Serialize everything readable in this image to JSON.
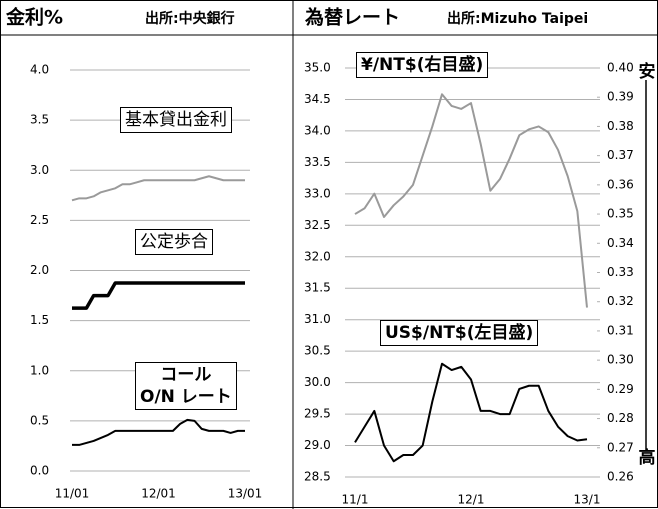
{
  "chart_data": [
    {
      "type": "line",
      "title": "金利%",
      "source": "出所:中央銀行",
      "categories": [
        "11/01",
        null,
        null,
        null,
        null,
        null,
        null,
        null,
        null,
        null,
        null,
        null,
        "12/01",
        null,
        null,
        null,
        null,
        null,
        null,
        null,
        null,
        null,
        null,
        null,
        "13/01"
      ],
      "ylim": [
        0,
        4
      ],
      "yticks": [
        {
          "value": 0,
          "label": "0.0"
        },
        0.5,
        {
          "value": 1,
          "label": "1.0"
        },
        1.5,
        {
          "value": 2,
          "label": "2.0"
        },
        2.5,
        {
          "value": 3,
          "label": "3.0"
        },
        3.5,
        {
          "value": 4,
          "label": "4.0"
        }
      ],
      "grid": true,
      "series": [
        {
          "name": "基本貸出金利",
          "color": "#9a9a9a",
          "width": 2,
          "values": [
            2.7,
            2.72,
            2.72,
            2.74,
            2.78,
            2.8,
            2.82,
            2.86,
            2.86,
            2.88,
            2.9,
            2.9,
            2.9,
            2.9,
            2.9,
            2.9,
            2.9,
            2.9,
            2.92,
            2.94,
            2.92,
            2.9,
            2.9,
            2.9,
            2.9
          ]
        },
        {
          "name": "公定歩合",
          "color": "#000000",
          "width": 3.5,
          "values": [
            1.625,
            1.625,
            1.625,
            1.75,
            1.75,
            1.75,
            1.875,
            1.875,
            1.875,
            1.875,
            1.875,
            1.875,
            1.875,
            1.875,
            1.875,
            1.875,
            1.875,
            1.875,
            1.875,
            1.875,
            1.875,
            1.875,
            1.875,
            1.875,
            1.875
          ]
        },
        {
          "name": "コール\nO/N レート",
          "color": "#000000",
          "width": 2,
          "values": [
            0.26,
            0.26,
            0.28,
            0.3,
            0.33,
            0.36,
            0.4,
            0.4,
            0.4,
            0.4,
            0.4,
            0.4,
            0.4,
            0.4,
            0.4,
            0.47,
            0.51,
            0.5,
            0.42,
            0.4,
            0.4,
            0.4,
            0.38,
            0.4,
            0.4
          ]
        }
      ]
    },
    {
      "type": "line",
      "title": "為替レート",
      "source": "出所:Mizuho Taipei",
      "categories": [
        "11/1",
        null,
        null,
        null,
        null,
        null,
        null,
        null,
        null,
        null,
        null,
        null,
        "12/1",
        null,
        null,
        null,
        null,
        null,
        null,
        null,
        null,
        null,
        null,
        null,
        "13/1"
      ],
      "ylim": [
        28.5,
        35
      ],
      "yticks": [
        28.5,
        {
          "value": 29,
          "label": "29.0"
        },
        29.5,
        {
          "value": 30,
          "label": "30.0"
        },
        30.5,
        {
          "value": 31,
          "label": "31.0"
        },
        31.5,
        {
          "value": 32,
          "label": "32.0"
        },
        32.5,
        {
          "value": 33,
          "label": "33.0"
        },
        33.5,
        {
          "value": 34,
          "label": "34.0"
        },
        34.5,
        {
          "value": 35,
          "label": "35.0"
        }
      ],
      "y2lim": [
        0.26,
        0.4
      ],
      "y2ticks": [
        0.26,
        0.27,
        0.28,
        0.29,
        {
          "value": 0.3,
          "label": "0.30"
        },
        0.31,
        0.32,
        0.33,
        0.34,
        0.35,
        0.36,
        0.37,
        0.38,
        0.39,
        {
          "value": 0.4,
          "label": "0.40"
        }
      ],
      "grid": true,
      "annotations": [
        "安",
        "高"
      ],
      "series": [
        {
          "name": "¥/NT$(右目盛)",
          "color": "#9a9a9a",
          "width": 2,
          "axis": "y2",
          "values": [
            0.35,
            0.352,
            0.357,
            0.349,
            0.353,
            0.356,
            0.36,
            0.37,
            0.38,
            0.391,
            0.387,
            0.386,
            0.388,
            0.374,
            0.358,
            0.362,
            0.369,
            0.377,
            0.379,
            0.38,
            0.378,
            0.372,
            0.363,
            0.351,
            0.318
          ]
        },
        {
          "name": "US$/NT$(左目盛)",
          "color": "#000000",
          "width": 2,
          "values": [
            29.05,
            29.3,
            29.55,
            29.0,
            28.75,
            28.85,
            28.85,
            29.0,
            29.7,
            30.3,
            30.2,
            30.25,
            30.05,
            29.55,
            29.55,
            29.5,
            29.5,
            29.9,
            29.95,
            29.95,
            29.55,
            29.3,
            29.15,
            29.08,
            29.1
          ]
        }
      ]
    }
  ]
}
